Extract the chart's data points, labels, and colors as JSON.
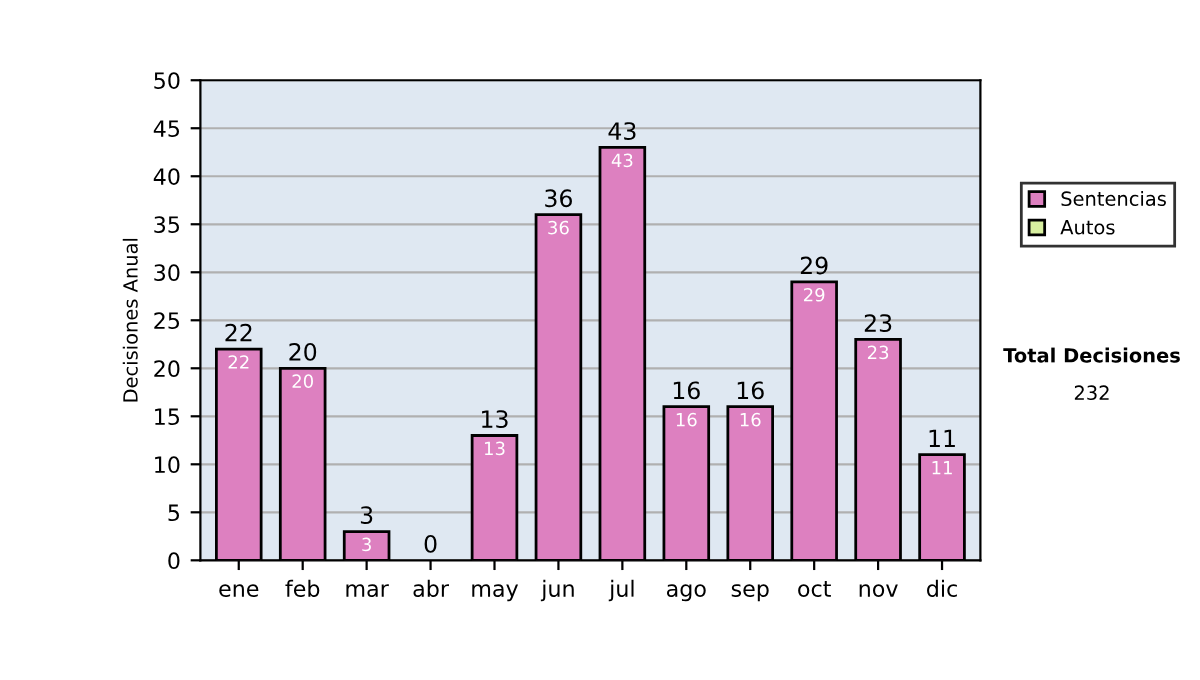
{
  "chart_data": {
    "type": "bar",
    "stacked": true,
    "ylabel": "Decisiones Anual",
    "categories": [
      "ene",
      "feb",
      "mar",
      "abr",
      "may",
      "jun",
      "jul",
      "ago",
      "sep",
      "oct",
      "nov",
      "dic"
    ],
    "series": [
      {
        "name": "Sentencias",
        "color": "#dd80c0",
        "values": [
          22,
          20,
          3,
          0,
          13,
          36,
          43,
          16,
          16,
          29,
          23,
          11
        ],
        "value_labels": [
          "22",
          "20",
          "3",
          null,
          "13",
          "36",
          "43",
          "16",
          "16",
          "29",
          "23",
          "11"
        ]
      },
      {
        "name": "Autos",
        "color": "#d8f0a0",
        "values": [
          0,
          0,
          0,
          0,
          0,
          0,
          0,
          0,
          0,
          0,
          0,
          0
        ]
      }
    ],
    "totals": [
      "22",
      "20",
      "3",
      "0",
      "13",
      "36",
      "43",
      "16",
      "16",
      "29",
      "23",
      "11"
    ],
    "ylim": [
      0,
      50
    ],
    "yticks": [
      0,
      5,
      10,
      15,
      20,
      25,
      30,
      35,
      40,
      45,
      50
    ],
    "grid": "y",
    "legend": "right",
    "annotations": [
      "Total Decisiones",
      "232"
    ]
  }
}
